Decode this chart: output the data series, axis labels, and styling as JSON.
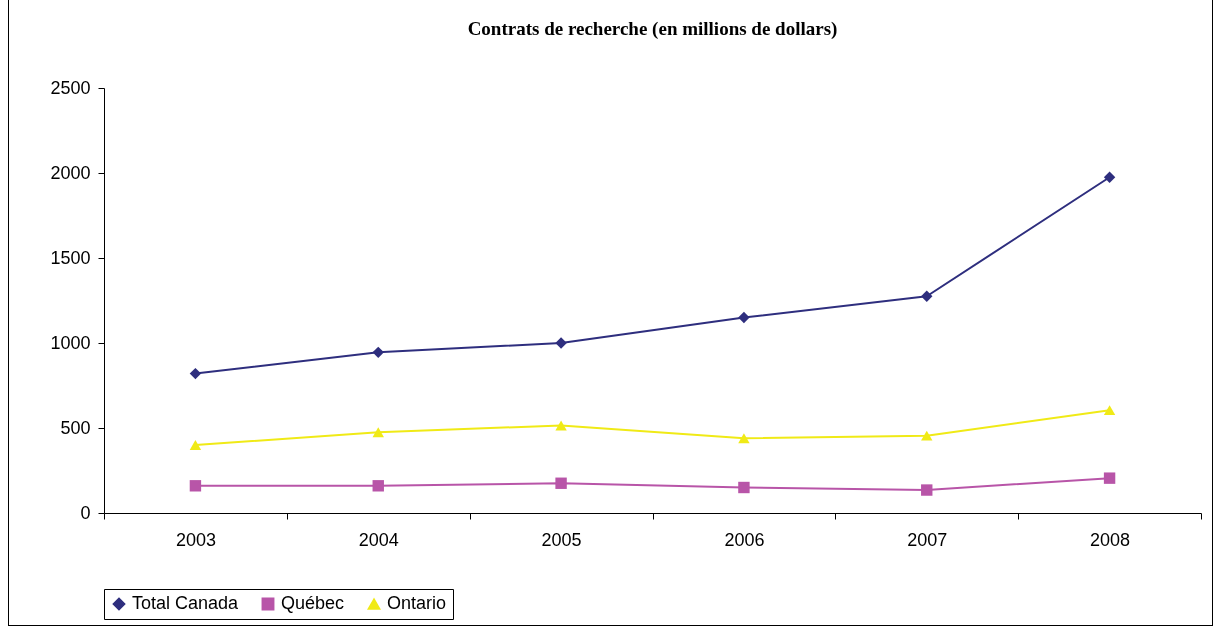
{
  "chart_data": {
    "type": "line",
    "title": "Contrats de recherche (en millions de dollars)",
    "categories": [
      "2003",
      "2004",
      "2005",
      "2006",
      "2007",
      "2008"
    ],
    "series": [
      {
        "name": "Total Canada",
        "color": "#2e2e7e",
        "marker": "diamond",
        "values": [
          820,
          945,
          1000,
          1150,
          1275,
          1975
        ]
      },
      {
        "name": "Québec",
        "color": "#b855a8",
        "marker": "square",
        "values": [
          160,
          160,
          175,
          150,
          135,
          205
        ]
      },
      {
        "name": "Ontario",
        "color": "#f0ea16",
        "marker": "triangle",
        "values": [
          400,
          475,
          515,
          440,
          455,
          605
        ]
      }
    ],
    "ylim": [
      0,
      2500
    ],
    "yticks": [
      0,
      500,
      1000,
      1500,
      2000,
      2500
    ],
    "grid": false,
    "legend": "bottom"
  }
}
